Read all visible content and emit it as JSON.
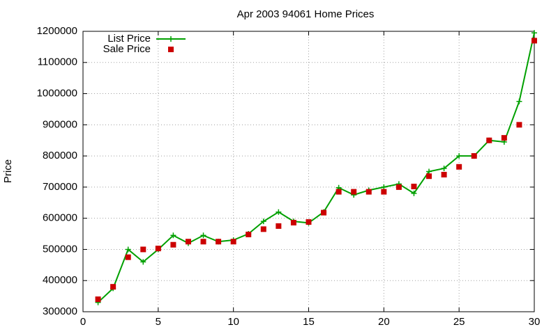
{
  "chart_data": {
    "type": "line",
    "title": "Apr 2003 94061 Home Prices",
    "ylabel": "Price",
    "x": [
      1,
      2,
      3,
      4,
      5,
      6,
      7,
      8,
      9,
      10,
      11,
      12,
      13,
      14,
      15,
      16,
      17,
      18,
      19,
      20,
      21,
      22,
      23,
      24,
      25,
      26,
      27,
      28,
      29,
      30
    ],
    "series": [
      {
        "name": "List Price",
        "color": "#00a000",
        "marker": "plus",
        "line": true,
        "values": [
          330000,
          375000,
          500000,
          460000,
          500000,
          545000,
          520000,
          545000,
          525000,
          530000,
          550000,
          590000,
          620000,
          590000,
          585000,
          620000,
          698000,
          675000,
          690000,
          700000,
          710000,
          680000,
          750000,
          760000,
          800000,
          800000,
          850000,
          845000,
          975000,
          1195000
        ]
      },
      {
        "name": "Sale Price",
        "color": "#cc0000",
        "marker": "square",
        "line": false,
        "values": [
          340000,
          380000,
          475000,
          500000,
          503000,
          515000,
          525000,
          525000,
          525000,
          525000,
          548000,
          565000,
          575000,
          586000,
          588000,
          618000,
          685000,
          685000,
          685000,
          685000,
          700000,
          702000,
          735000,
          740000,
          765000,
          800000,
          850000,
          858000,
          900000,
          1170000
        ]
      }
    ],
    "xlim": [
      0,
      30
    ],
    "xticks": [
      0,
      5,
      10,
      15,
      20,
      25,
      30
    ],
    "ylim": [
      300000,
      1200000
    ],
    "yticks": [
      300000,
      400000,
      500000,
      600000,
      700000,
      800000,
      900000,
      1000000,
      1100000,
      1200000
    ],
    "grid": true,
    "legend": "top-left"
  }
}
